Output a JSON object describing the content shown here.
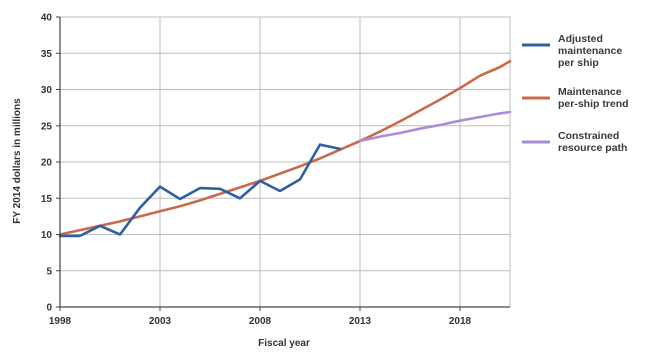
{
  "chart_data": {
    "type": "line",
    "xlabel": "Fiscal year",
    "ylabel": "FY 2014 dollars in millions",
    "xlim": [
      1998,
      2020.5
    ],
    "ylim": [
      0,
      40
    ],
    "x_ticks": [
      1998,
      2003,
      2008,
      2013,
      2018
    ],
    "y_ticks": [
      0,
      5,
      10,
      15,
      20,
      25,
      30,
      35,
      40
    ],
    "grid": true,
    "legend_position": "right",
    "series": [
      {
        "name": "Adjusted maintenance per ship",
        "legend_lines": [
          "Adjusted",
          "maintenance",
          "per ship"
        ],
        "color": "#2f5fa3",
        "x": [
          1998,
          1999,
          2000,
          2001,
          2002,
          2003,
          2004,
          2005,
          2006,
          2007,
          2008,
          2009,
          2010,
          2011,
          2012
        ],
        "y": [
          9.8,
          9.8,
          11.2,
          10.0,
          13.7,
          16.6,
          14.9,
          16.4,
          16.3,
          15.0,
          17.4,
          16.0,
          17.6,
          22.4,
          21.8
        ]
      },
      {
        "name": "Maintenance per-ship trend",
        "legend_lines": [
          "Maintenance",
          "per-ship trend"
        ],
        "color": "#c96a4a",
        "x": [
          1998,
          1999,
          2000,
          2001,
          2002,
          2003,
          2004,
          2005,
          2006,
          2007,
          2008,
          2009,
          2010,
          2011,
          2012,
          2013,
          2014,
          2015,
          2016,
          2017,
          2018,
          2019,
          2020,
          2020.5
        ],
        "y": [
          10.0,
          10.6,
          11.2,
          11.8,
          12.5,
          13.2,
          13.9,
          14.7,
          15.6,
          16.5,
          17.4,
          18.4,
          19.4,
          20.5,
          21.7,
          22.9,
          24.2,
          25.6,
          27.1,
          28.6,
          30.2,
          31.9,
          33.1,
          33.9
        ]
      },
      {
        "name": "Constrained resource path",
        "legend_lines": [
          "Constrained",
          "resource path"
        ],
        "color": "#a98ed6",
        "x": [
          2013,
          2014,
          2015,
          2016,
          2017,
          2018,
          2019,
          2020,
          2020.5
        ],
        "y": [
          22.9,
          23.5,
          24.0,
          24.6,
          25.1,
          25.7,
          26.2,
          26.7,
          26.9
        ]
      }
    ]
  }
}
